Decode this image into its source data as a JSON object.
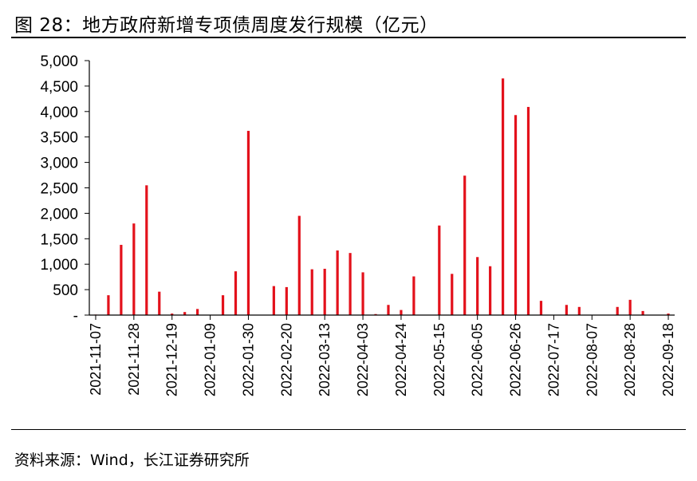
{
  "title": "图 28：地方政府新增专项债周度发行规模（亿元）",
  "source": "资料来源：Wind，长江证券研究所",
  "colors": {
    "bar": "#e3111b",
    "axis": "#000000"
  },
  "chart_data": {
    "type": "bar",
    "title": "图 28：地方政府新增专项债周度发行规模（亿元）",
    "xlabel": "",
    "ylabel": "",
    "ylim": [
      0,
      5000
    ],
    "y_ticks": [
      "-",
      "500",
      "1,000",
      "1,500",
      "2,000",
      "2,500",
      "3,000",
      "3,500",
      "4,000",
      "4,500",
      "5,000"
    ],
    "x_tick_labels": [
      "2021-11-07",
      "2021-11-28",
      "2021-12-19",
      "2022-01-09",
      "2022-01-30",
      "2022-02-20",
      "2022-03-13",
      "2022-04-03",
      "2022-04-24",
      "2022-05-15",
      "2022-06-05",
      "2022-06-26",
      "2022-07-17",
      "2022-08-07",
      "2022-08-28",
      "2022-09-18"
    ],
    "categories": [
      "2021-11-07",
      "2021-11-14",
      "2021-11-21",
      "2021-11-28",
      "2021-12-05",
      "2021-12-12",
      "2021-12-19",
      "2021-12-26",
      "2022-01-02",
      "2022-01-09",
      "2022-01-16",
      "2022-01-23",
      "2022-01-30",
      "2022-02-06",
      "2022-02-13",
      "2022-02-20",
      "2022-02-27",
      "2022-03-06",
      "2022-03-13",
      "2022-03-20",
      "2022-03-27",
      "2022-04-03",
      "2022-04-10",
      "2022-04-17",
      "2022-04-24",
      "2022-05-01",
      "2022-05-08",
      "2022-05-15",
      "2022-05-22",
      "2022-05-29",
      "2022-06-05",
      "2022-06-12",
      "2022-06-19",
      "2022-06-26",
      "2022-07-03",
      "2022-07-10",
      "2022-07-17",
      "2022-07-24",
      "2022-07-31",
      "2022-08-07",
      "2022-08-14",
      "2022-08-21",
      "2022-08-28",
      "2022-09-04",
      "2022-09-11",
      "2022-09-18"
    ],
    "series": [
      {
        "values": [
          10,
          390,
          1380,
          1800,
          2550,
          460,
          30,
          60,
          120,
          0,
          390,
          860,
          3620,
          0,
          570,
          550,
          1950,
          900,
          910,
          1270,
          1220,
          840,
          20,
          200,
          100,
          760,
          0,
          1760,
          810,
          2740,
          1140,
          960,
          4650,
          3930,
          4090,
          280,
          0,
          200,
          160,
          0,
          0,
          160,
          300,
          80,
          0,
          30
        ]
      }
    ]
  }
}
